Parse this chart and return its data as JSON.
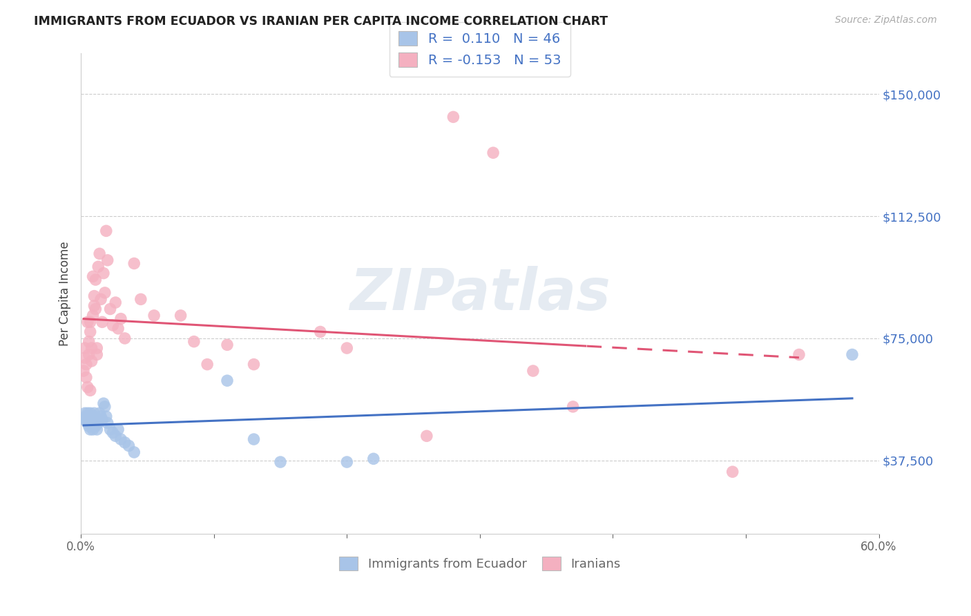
{
  "title": "IMMIGRANTS FROM ECUADOR VS IRANIAN PER CAPITA INCOME CORRELATION CHART",
  "source": "Source: ZipAtlas.com",
  "ylabel": "Per Capita Income",
  "xmin": 0.0,
  "xmax": 0.6,
  "ymin": 15000,
  "ymax": 162500,
  "yticks": [
    37500,
    75000,
    112500,
    150000
  ],
  "ytick_labels": [
    "$37,500",
    "$75,000",
    "$112,500",
    "$150,000"
  ],
  "xticks": [
    0.0,
    0.1,
    0.2,
    0.3,
    0.4,
    0.5,
    0.6
  ],
  "xtick_labels": [
    "0.0%",
    "",
    "",
    "",
    "",
    "",
    "60.0%"
  ],
  "blue_color": "#a8c4e8",
  "pink_color": "#f4b0c0",
  "blue_line_color": "#4472c4",
  "pink_line_color": "#e05575",
  "legend_R_blue": "0.110",
  "legend_N_blue": "46",
  "legend_R_pink": "-0.153",
  "legend_N_pink": "53",
  "label_blue": "Immigrants from Ecuador",
  "label_pink": "Iranians",
  "watermark": "ZIPatlas",
  "blue_x": [
    0.002,
    0.003,
    0.004,
    0.004,
    0.005,
    0.005,
    0.006,
    0.006,
    0.006,
    0.007,
    0.007,
    0.007,
    0.008,
    0.008,
    0.008,
    0.009,
    0.009,
    0.01,
    0.01,
    0.01,
    0.011,
    0.011,
    0.012,
    0.012,
    0.013,
    0.014,
    0.015,
    0.016,
    0.017,
    0.018,
    0.019,
    0.02,
    0.022,
    0.024,
    0.026,
    0.028,
    0.03,
    0.033,
    0.036,
    0.04,
    0.11,
    0.13,
    0.15,
    0.2,
    0.22,
    0.58
  ],
  "blue_y": [
    50000,
    52000,
    51000,
    50000,
    49000,
    52000,
    48000,
    50000,
    51000,
    47000,
    50000,
    52000,
    48000,
    49000,
    51000,
    47000,
    50000,
    51000,
    49000,
    52000,
    48000,
    50000,
    47000,
    50000,
    49000,
    52000,
    51000,
    50000,
    55000,
    54000,
    51000,
    49000,
    47000,
    46000,
    45000,
    47000,
    44000,
    43000,
    42000,
    40000,
    62000,
    44000,
    37000,
    37000,
    38000,
    70000
  ],
  "pink_x": [
    0.002,
    0.003,
    0.003,
    0.004,
    0.004,
    0.005,
    0.005,
    0.006,
    0.006,
    0.007,
    0.007,
    0.007,
    0.008,
    0.008,
    0.009,
    0.009,
    0.01,
    0.01,
    0.011,
    0.011,
    0.012,
    0.012,
    0.013,
    0.014,
    0.015,
    0.016,
    0.017,
    0.018,
    0.019,
    0.02,
    0.022,
    0.024,
    0.026,
    0.028,
    0.03,
    0.033,
    0.04,
    0.045,
    0.055,
    0.075,
    0.085,
    0.095,
    0.11,
    0.13,
    0.18,
    0.2,
    0.26,
    0.28,
    0.31,
    0.34,
    0.37,
    0.49,
    0.54
  ],
  "pink_y": [
    65000,
    69000,
    72000,
    63000,
    67000,
    80000,
    60000,
    74000,
    70000,
    80000,
    59000,
    77000,
    72000,
    68000,
    94000,
    82000,
    88000,
    85000,
    93000,
    84000,
    72000,
    70000,
    97000,
    101000,
    87000,
    80000,
    95000,
    89000,
    108000,
    99000,
    84000,
    79000,
    86000,
    78000,
    81000,
    75000,
    98000,
    87000,
    82000,
    82000,
    74000,
    67000,
    73000,
    67000,
    77000,
    72000,
    45000,
    143000,
    132000,
    65000,
    54000,
    34000,
    70000
  ]
}
